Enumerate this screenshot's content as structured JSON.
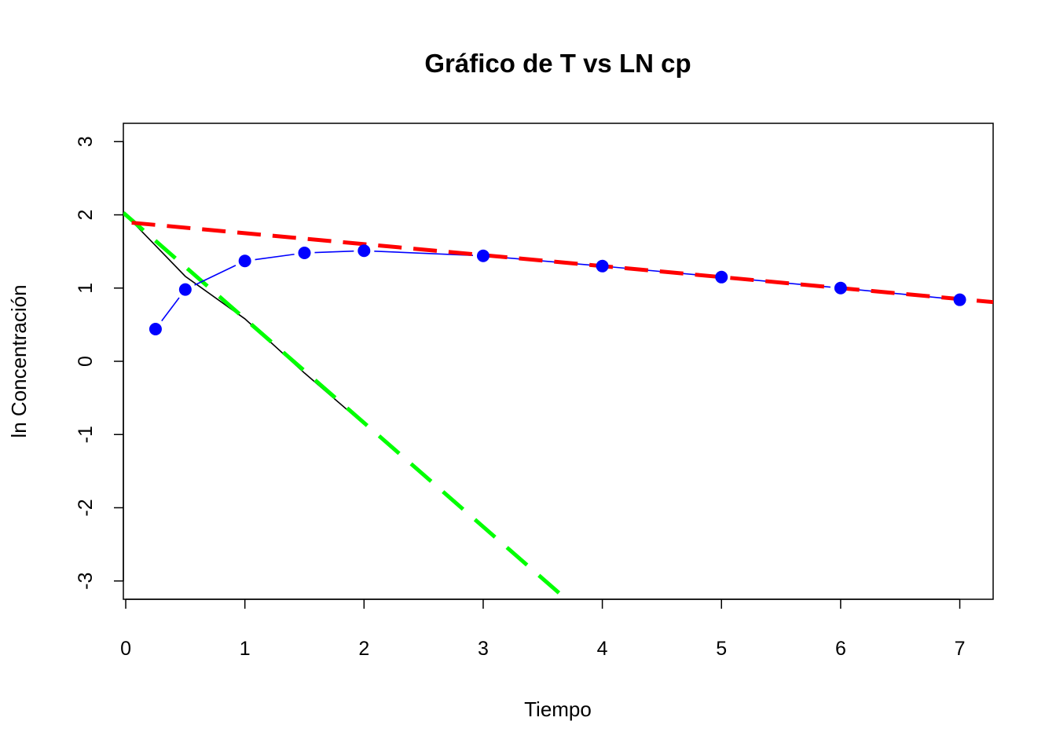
{
  "chart_data": {
    "type": "line",
    "title": "Gráfico de T vs LN cp",
    "xlabel": "Tiempo",
    "ylabel": "ln Concentración",
    "xlim": [
      -0.02,
      7.28
    ],
    "ylim": [
      -3.25,
      3.25
    ],
    "x_ticks": [
      0,
      1,
      2,
      3,
      4,
      5,
      6,
      7
    ],
    "y_ticks": [
      -3,
      -2,
      -1,
      0,
      1,
      2,
      3
    ],
    "grid": false,
    "legend": "none",
    "series": [
      {
        "kind": "observed",
        "color": "#0000ff",
        "marker": "circle",
        "x": [
          0.25,
          0.5,
          1,
          1.5,
          2,
          3,
          4,
          5,
          6,
          7
        ],
        "y": [
          0.44,
          0.98,
          1.37,
          1.48,
          1.51,
          1.44,
          1.3,
          1.15,
          1.0,
          0.84
        ]
      },
      {
        "kind": "residual",
        "color": "#000000",
        "x": [
          0,
          0.25,
          0.5,
          1,
          1.5,
          2
        ],
        "y": [
          2.0,
          1.58,
          1.16,
          0.58,
          -0.16,
          -0.86
        ]
      },
      {
        "kind": "terminal-fit",
        "color": "#ff0000",
        "dashed": true,
        "intercept": 1.9,
        "slope": -0.15,
        "x_range": [
          0.05,
          7.28
        ]
      },
      {
        "kind": "absorption-fit",
        "color": "#00ff00",
        "dashed": true,
        "intercept": 2.0,
        "slope": -1.42,
        "x_range": [
          -0.02,
          3.73
        ]
      }
    ]
  }
}
